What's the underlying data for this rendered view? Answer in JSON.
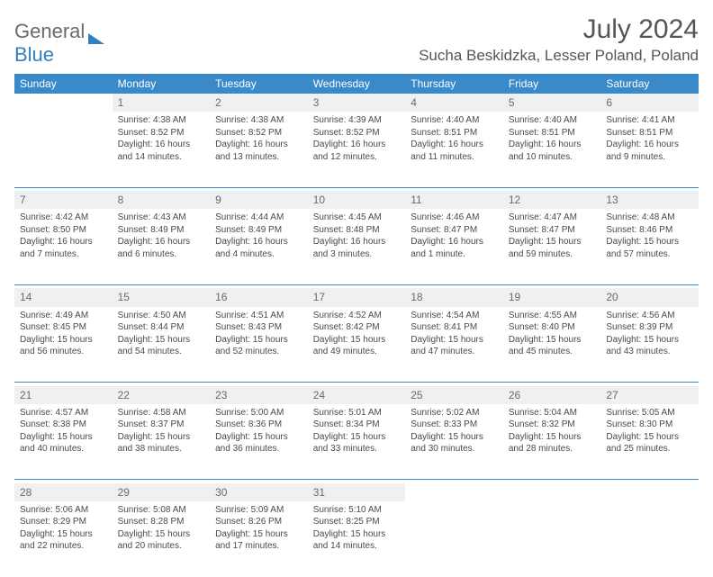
{
  "brand": {
    "part1": "General",
    "part2": "Blue"
  },
  "title": "July 2024",
  "location": "Sucha Beskidzka, Lesser Poland, Poland",
  "colors": {
    "header_bg": "#3a89c9",
    "header_text": "#ffffff",
    "daynum_bg": "#eef0f1",
    "body_text": "#4a4a4a",
    "logo_gray": "#6a6a6a",
    "logo_blue": "#2f7fc2"
  },
  "day_headers": [
    "Sunday",
    "Monday",
    "Tuesday",
    "Wednesday",
    "Thursday",
    "Friday",
    "Saturday"
  ],
  "weeks": [
    {
      "nums": [
        "",
        "1",
        "2",
        "3",
        "4",
        "5",
        "6"
      ],
      "cells": [
        [],
        [
          "Sunrise: 4:38 AM",
          "Sunset: 8:52 PM",
          "Daylight: 16 hours and 14 minutes."
        ],
        [
          "Sunrise: 4:38 AM",
          "Sunset: 8:52 PM",
          "Daylight: 16 hours and 13 minutes."
        ],
        [
          "Sunrise: 4:39 AM",
          "Sunset: 8:52 PM",
          "Daylight: 16 hours and 12 minutes."
        ],
        [
          "Sunrise: 4:40 AM",
          "Sunset: 8:51 PM",
          "Daylight: 16 hours and 11 minutes."
        ],
        [
          "Sunrise: 4:40 AM",
          "Sunset: 8:51 PM",
          "Daylight: 16 hours and 10 minutes."
        ],
        [
          "Sunrise: 4:41 AM",
          "Sunset: 8:51 PM",
          "Daylight: 16 hours and 9 minutes."
        ]
      ]
    },
    {
      "nums": [
        "7",
        "8",
        "9",
        "10",
        "11",
        "12",
        "13"
      ],
      "cells": [
        [
          "Sunrise: 4:42 AM",
          "Sunset: 8:50 PM",
          "Daylight: 16 hours and 7 minutes."
        ],
        [
          "Sunrise: 4:43 AM",
          "Sunset: 8:49 PM",
          "Daylight: 16 hours and 6 minutes."
        ],
        [
          "Sunrise: 4:44 AM",
          "Sunset: 8:49 PM",
          "Daylight: 16 hours and 4 minutes."
        ],
        [
          "Sunrise: 4:45 AM",
          "Sunset: 8:48 PM",
          "Daylight: 16 hours and 3 minutes."
        ],
        [
          "Sunrise: 4:46 AM",
          "Sunset: 8:47 PM",
          "Daylight: 16 hours and 1 minute."
        ],
        [
          "Sunrise: 4:47 AM",
          "Sunset: 8:47 PM",
          "Daylight: 15 hours and 59 minutes."
        ],
        [
          "Sunrise: 4:48 AM",
          "Sunset: 8:46 PM",
          "Daylight: 15 hours and 57 minutes."
        ]
      ]
    },
    {
      "nums": [
        "14",
        "15",
        "16",
        "17",
        "18",
        "19",
        "20"
      ],
      "cells": [
        [
          "Sunrise: 4:49 AM",
          "Sunset: 8:45 PM",
          "Daylight: 15 hours and 56 minutes."
        ],
        [
          "Sunrise: 4:50 AM",
          "Sunset: 8:44 PM",
          "Daylight: 15 hours and 54 minutes."
        ],
        [
          "Sunrise: 4:51 AM",
          "Sunset: 8:43 PM",
          "Daylight: 15 hours and 52 minutes."
        ],
        [
          "Sunrise: 4:52 AM",
          "Sunset: 8:42 PM",
          "Daylight: 15 hours and 49 minutes."
        ],
        [
          "Sunrise: 4:54 AM",
          "Sunset: 8:41 PM",
          "Daylight: 15 hours and 47 minutes."
        ],
        [
          "Sunrise: 4:55 AM",
          "Sunset: 8:40 PM",
          "Daylight: 15 hours and 45 minutes."
        ],
        [
          "Sunrise: 4:56 AM",
          "Sunset: 8:39 PM",
          "Daylight: 15 hours and 43 minutes."
        ]
      ]
    },
    {
      "nums": [
        "21",
        "22",
        "23",
        "24",
        "25",
        "26",
        "27"
      ],
      "cells": [
        [
          "Sunrise: 4:57 AM",
          "Sunset: 8:38 PM",
          "Daylight: 15 hours and 40 minutes."
        ],
        [
          "Sunrise: 4:58 AM",
          "Sunset: 8:37 PM",
          "Daylight: 15 hours and 38 minutes."
        ],
        [
          "Sunrise: 5:00 AM",
          "Sunset: 8:36 PM",
          "Daylight: 15 hours and 36 minutes."
        ],
        [
          "Sunrise: 5:01 AM",
          "Sunset: 8:34 PM",
          "Daylight: 15 hours and 33 minutes."
        ],
        [
          "Sunrise: 5:02 AM",
          "Sunset: 8:33 PM",
          "Daylight: 15 hours and 30 minutes."
        ],
        [
          "Sunrise: 5:04 AM",
          "Sunset: 8:32 PM",
          "Daylight: 15 hours and 28 minutes."
        ],
        [
          "Sunrise: 5:05 AM",
          "Sunset: 8:30 PM",
          "Daylight: 15 hours and 25 minutes."
        ]
      ]
    },
    {
      "nums": [
        "28",
        "29",
        "30",
        "31",
        "",
        "",
        ""
      ],
      "cells": [
        [
          "Sunrise: 5:06 AM",
          "Sunset: 8:29 PM",
          "Daylight: 15 hours and 22 minutes."
        ],
        [
          "Sunrise: 5:08 AM",
          "Sunset: 8:28 PM",
          "Daylight: 15 hours and 20 minutes."
        ],
        [
          "Sunrise: 5:09 AM",
          "Sunset: 8:26 PM",
          "Daylight: 15 hours and 17 minutes."
        ],
        [
          "Sunrise: 5:10 AM",
          "Sunset: 8:25 PM",
          "Daylight: 15 hours and 14 minutes."
        ],
        [],
        [],
        []
      ]
    }
  ]
}
